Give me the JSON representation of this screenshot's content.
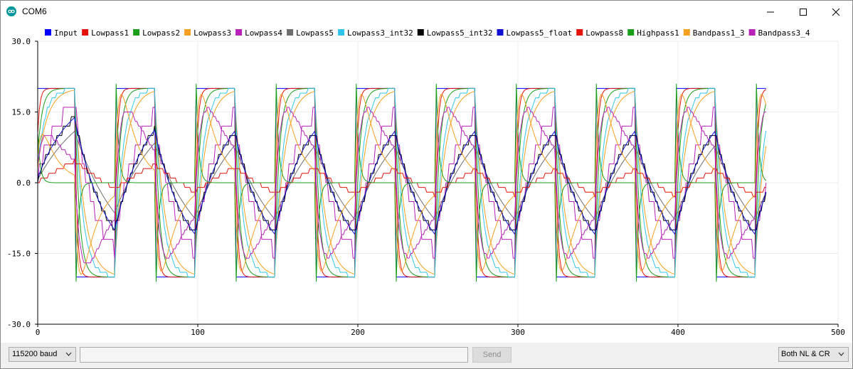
{
  "window": {
    "title": "COM6",
    "accent": "#00979c"
  },
  "bottom_bar": {
    "baud": "115200 baud",
    "message_placeholder": "",
    "send_label": "Send",
    "line_ending": "Both NL & CR"
  },
  "chart_data": {
    "type": "line",
    "xlim": [
      0,
      500
    ],
    "ylim": [
      -30,
      30
    ],
    "x_ticks": [
      "0",
      "100",
      "200",
      "300",
      "400",
      "500"
    ],
    "y_ticks": [
      "30.0",
      "15.0",
      "0.0",
      "-15.0",
      "-30.0"
    ],
    "grid": true,
    "legend_position": "top",
    "square_wave": {
      "amplitude": 20,
      "period": 50,
      "first_high_end": 24,
      "last_x": 455
    },
    "series": [
      {
        "name": "Input",
        "color": "#0000ff",
        "kind": "input"
      },
      {
        "name": "Lowpass1",
        "color": "#e3120b",
        "kind": "lowpass",
        "tau": 0.9
      },
      {
        "name": "Lowpass2",
        "color": "#1b9e1b",
        "kind": "lowpass",
        "tau": 2.3
      },
      {
        "name": "Lowpass3",
        "color": "#f5a020",
        "kind": "lowpass",
        "tau": 5.5
      },
      {
        "name": "Lowpass4",
        "color": "#b822b8",
        "kind": "lowpass",
        "tau": 13,
        "step": 4
      },
      {
        "name": "Lowpass5",
        "color": "#6e6e6e",
        "kind": "lowpass",
        "tau": 30
      },
      {
        "name": "Lowpass3_int32",
        "color": "#30c4ec",
        "kind": "lowpass",
        "tau": 4.2,
        "step": 1
      },
      {
        "name": "Lowpass5_int32",
        "color": "#000000",
        "kind": "lowpass",
        "tau": 20,
        "step": 2
      },
      {
        "name": "Lowpass5_float",
        "color": "#1010d0",
        "kind": "lowpass",
        "tau": 20
      },
      {
        "name": "Lowpass8",
        "color": "#e3120b",
        "kind": "lowpass",
        "tau": 90,
        "step": 1
      },
      {
        "name": "Highpass1",
        "color": "#1b9e1b",
        "kind": "highpass",
        "tau": 1.1
      },
      {
        "name": "Bandpass1_3",
        "color": "#f5a020",
        "kind": "bandpass",
        "tau": 1.6,
        "tau2": 9
      },
      {
        "name": "Bandpass3_4",
        "color": "#b822b8",
        "kind": "bandpass",
        "tau": 3.2,
        "tau2": 16,
        "step": 1
      }
    ]
  }
}
